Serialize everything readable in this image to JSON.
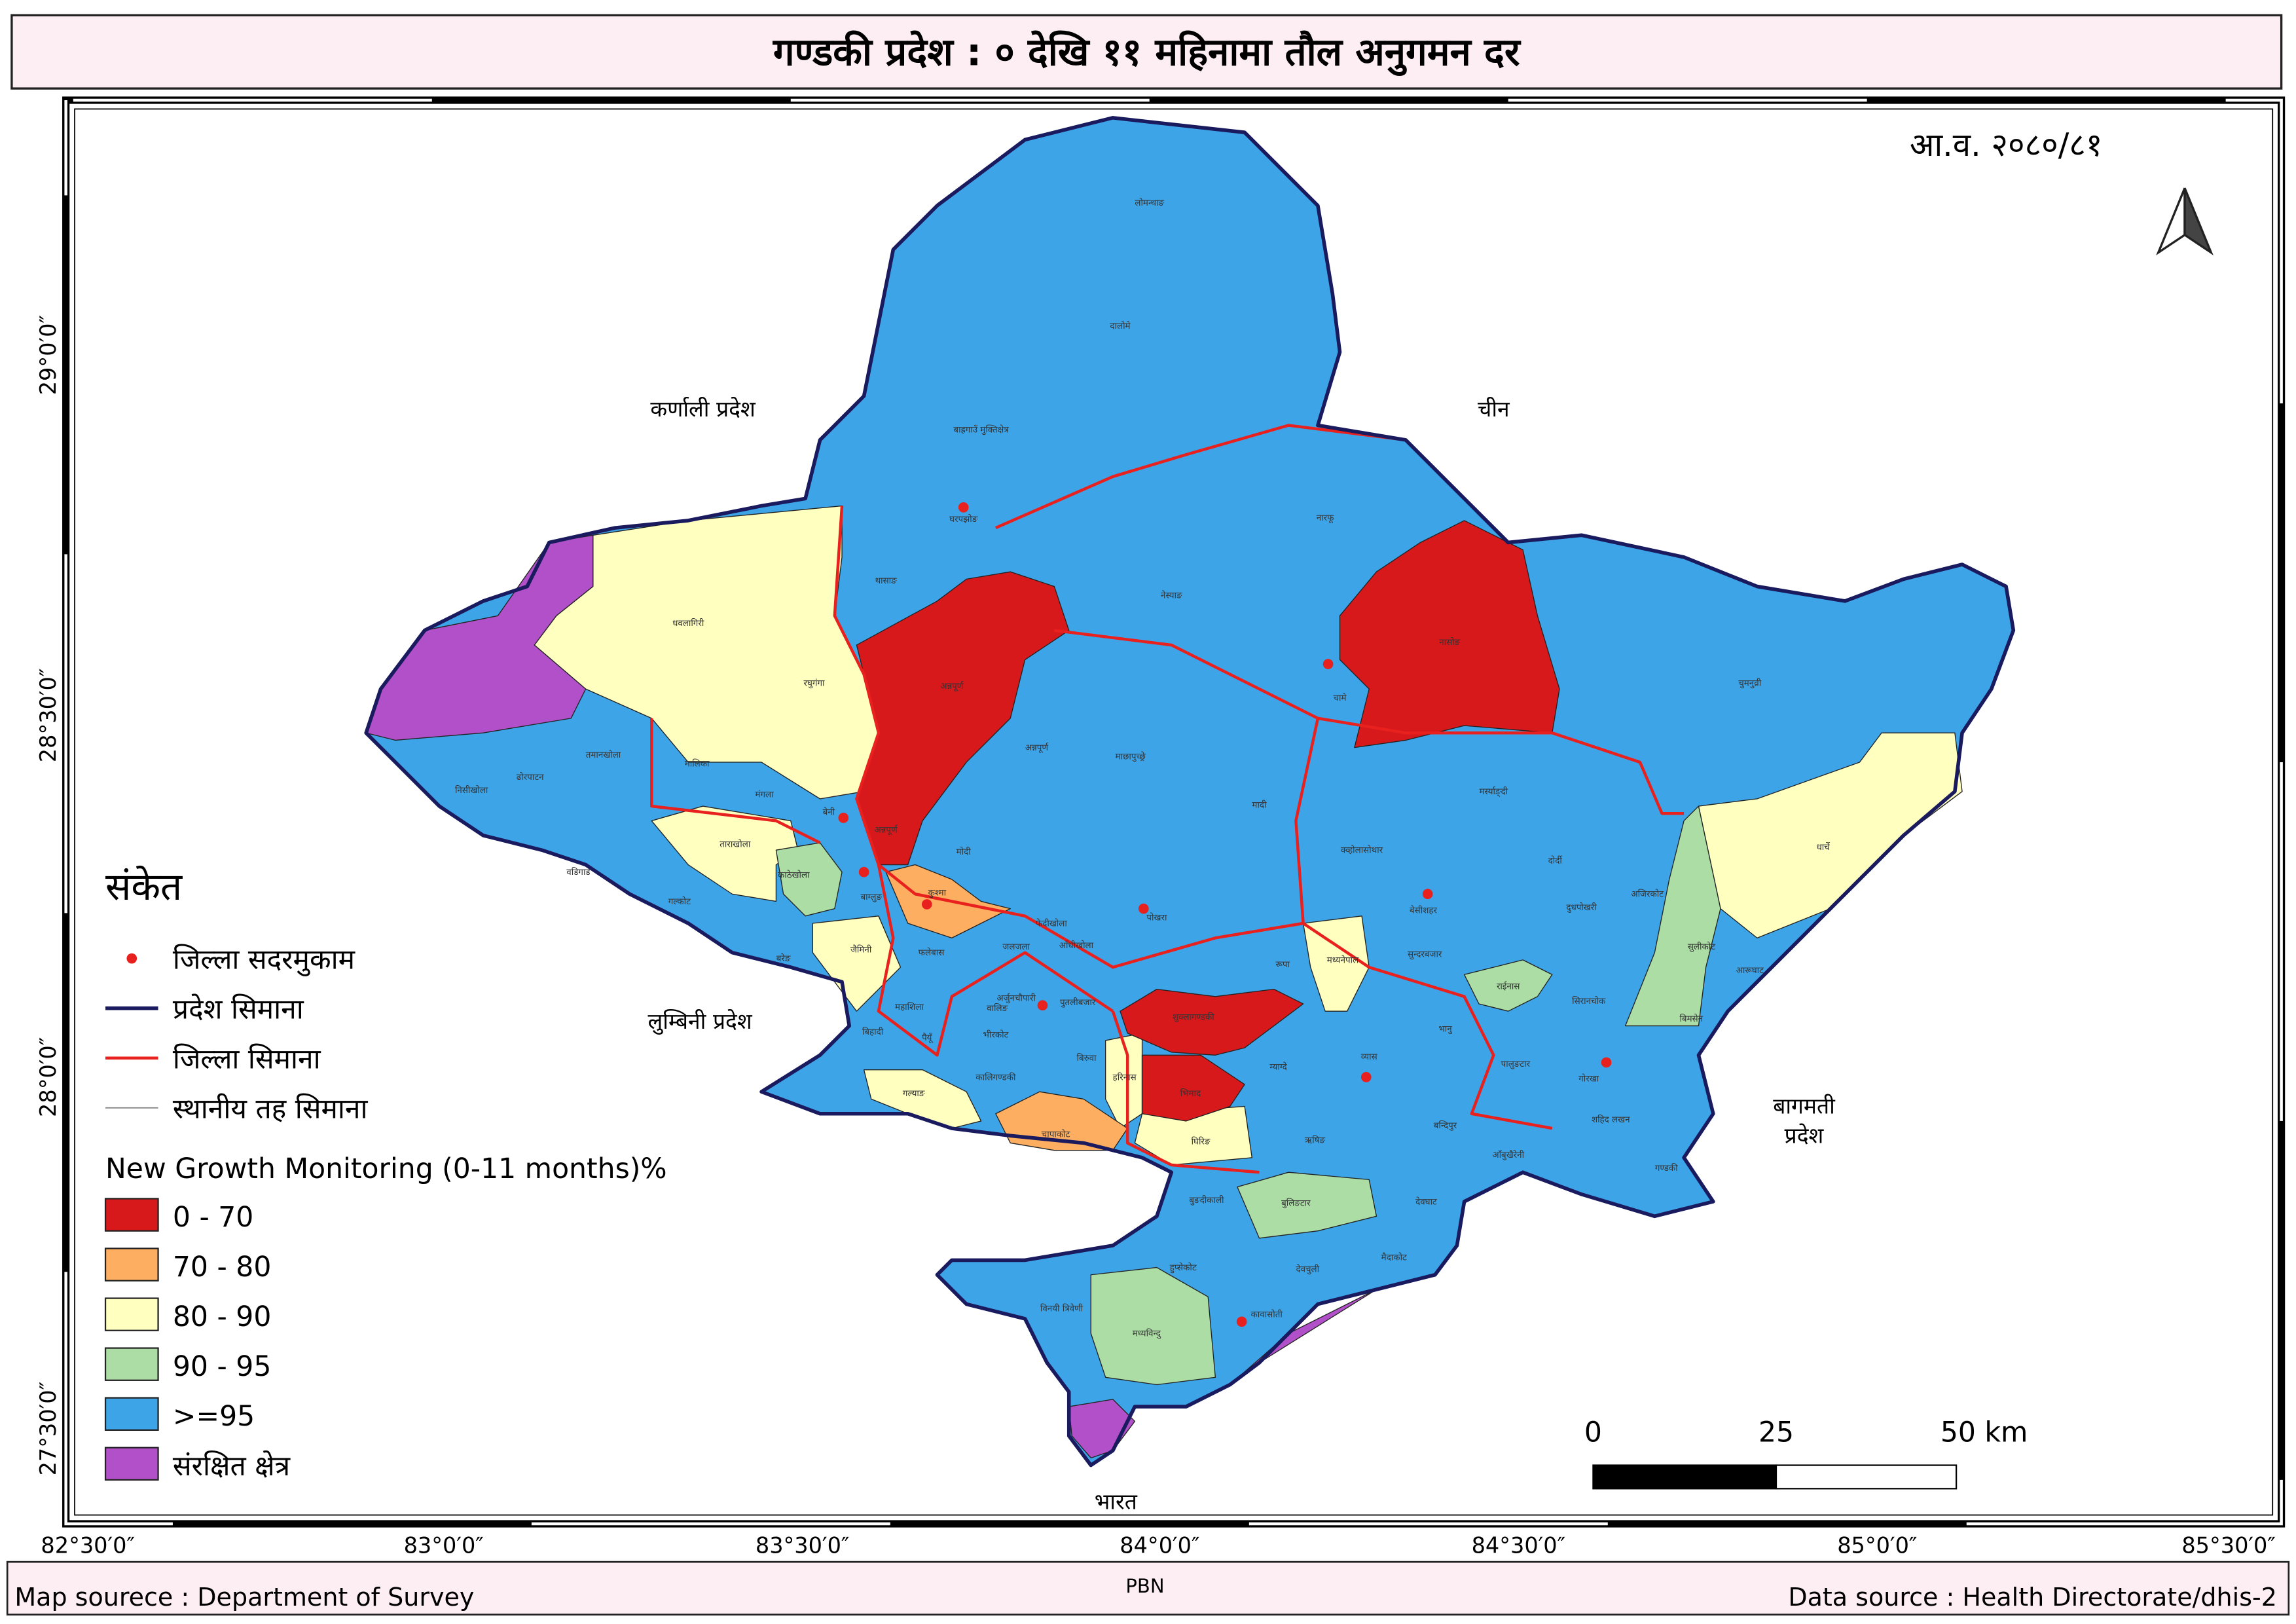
{
  "title": "गण्डकी प्रदेश : ० देखि ११ महिनामा तौल अनुगमन दर",
  "fiscal_year": "आ.व. २०८०/८१",
  "neighbors": [
    "कर्णाली प्रदेश",
    "चीन",
    "लुम्बिनी प्रदेश",
    "बागमती प्रदेश",
    "भारत"
  ],
  "legend": {
    "title": "संकेत",
    "symbols": [
      "जिल्ला सदरमुकाम",
      "प्रदेश सिमाना",
      "जिल्ला सिमाना",
      "स्थानीय तह सिमाना"
    ],
    "classes_title": "New Growth Monitoring (0-11 months)%",
    "classes": [
      {
        "label": "0 - 70",
        "color": "#d7191c"
      },
      {
        "label": "70 - 80",
        "color": "#fdae61"
      },
      {
        "label": "80 - 90",
        "color": "#ffffc0"
      },
      {
        "label": "90 - 95",
        "color": "#abdda4"
      },
      {
        "label": ">=95",
        "color": "#3ea4e8"
      },
      {
        "label": "संरक्षित क्षेत्र",
        "color": "#b150c8"
      }
    ]
  },
  "scale_bar": [
    "0",
    "25",
    "50 km"
  ],
  "longitude_ticks": [
    "82°30′0″",
    "83°0′0″",
    "83°30′0″",
    "84°0′0″",
    "84°30′0″",
    "85°0′0″",
    "85°30′0″"
  ],
  "latitude_ticks": [
    "29°0′0″",
    "28°30′0″",
    "28°0′0″",
    "27°30′0″"
  ],
  "footer": {
    "left": "Map sourece : Department of Survey",
    "center": "PBN",
    "right": "Data source : Health Directorate/dhis-2"
  },
  "places": [
    "लोमन्थाङ",
    "दालोमे",
    "बाह्रगाउँ मुक्तिक्षेत्र",
    "घरपझोङ",
    "थासाङ",
    "नारफू",
    "नेस्याङ",
    "चामे",
    "नासोङ",
    "चुमनुव्री",
    "धवलागिरी",
    "रघुगंगा",
    "अन्नपूर्ण",
    "अन्नपूर्ण",
    "माछापुच्छ्रे",
    "मादी",
    "मर्स्याङ्दी",
    "धार्चे",
    "तमानखोला",
    "ढोरपाटन",
    "निसीखोला",
    "मालिका",
    "मंगला",
    "बेनी",
    "अन्नपूर्ण",
    "मोदी",
    "ताराखोला",
    "काठेखोला",
    "वडिगाड",
    "गल्कोट",
    "बाग्लुङ",
    "कुश्मा",
    "जैमिनी",
    "बरेङ",
    "पोखरा",
    "रूपा",
    "मध्यनेपाल",
    "क्व्होलासोथार",
    "बेसीशहर",
    "सुन्दरबजार",
    "दोर्दी",
    "दुधपोखरी",
    "अजिरकोट",
    "सुलीकोट",
    "आरूघाट",
    "राईनास",
    "सिरानचोक",
    "बिमसेन",
    "गोरखा",
    "पालुङटार",
    "शहिद लखन",
    "गण्डकी",
    "भानु",
    "व्यास",
    "म्याग्दे",
    "बन्दिपुर",
    "आँबुखैरेनी",
    "देवघाट",
    "शुक्लागण्डकी",
    "भिमाद",
    "ऋषिङ",
    "घिरिङ",
    "हरिनास",
    "बिरुवा",
    "चापाकोट",
    "गल्याङ",
    "बिहादी",
    "महाशिला",
    "पैयूँ",
    "फलेबास",
    "जलजला",
    "अर्जुनचौपारी",
    "फेदीखोला",
    "आँधीखोला",
    "पुतलीबजार",
    "कालिगण्डकी",
    "भीरकोट",
    "वालिङ",
    "बुलिङटार",
    "बुङदीकाली",
    "हुप्सेकोट",
    "देवचुली",
    "मैदाकोट",
    "कावासोती",
    "मध्यविन्दु",
    "विनयी त्रिवेणी"
  ]
}
